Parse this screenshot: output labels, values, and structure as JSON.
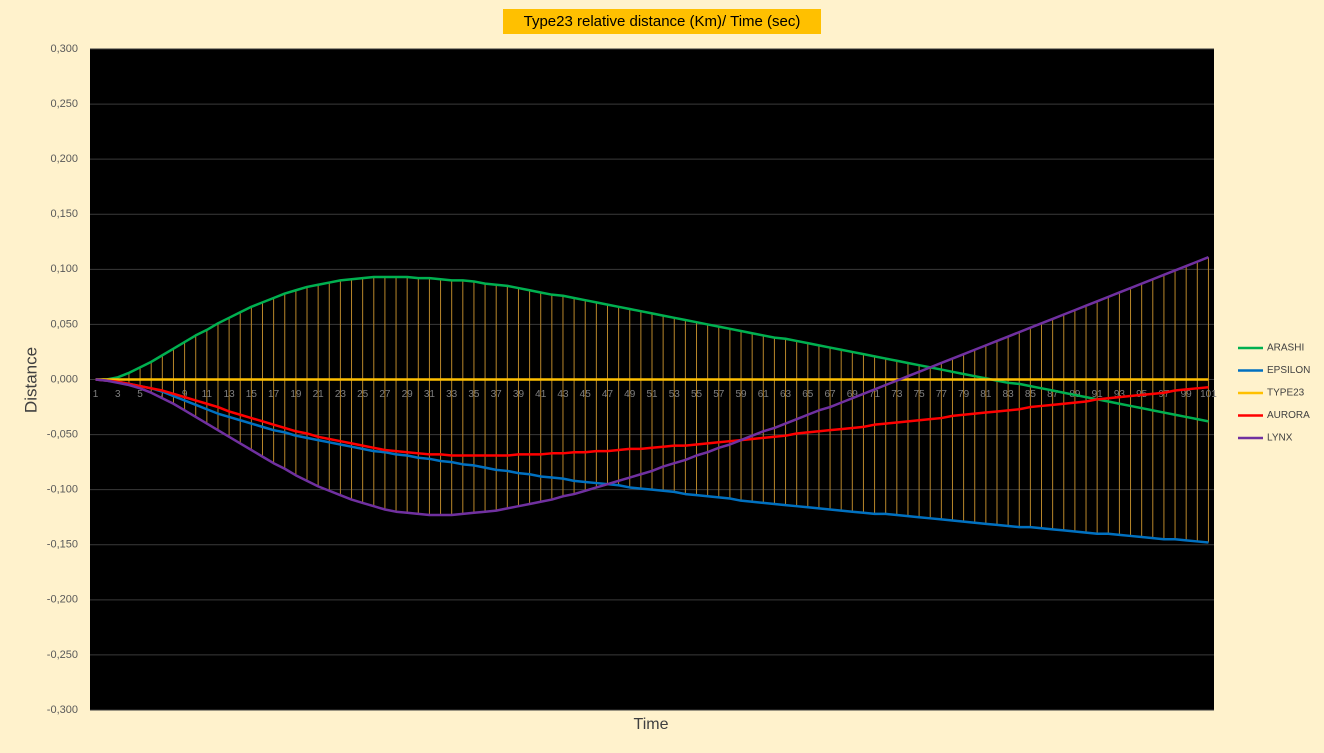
{
  "chart_data": {
    "type": "line",
    "title": "Type23 relative distance (Km)/ Time (sec)",
    "y_label": "Distance",
    "x_label": "Time",
    "categories": [
      1,
      null,
      3,
      null,
      5,
      null,
      7,
      null,
      9,
      null,
      11,
      null,
      13,
      null,
      15,
      null,
      17,
      null,
      19,
      null,
      21,
      null,
      23,
      null,
      25,
      null,
      27,
      null,
      29,
      null,
      31,
      null,
      33,
      null,
      35,
      null,
      37,
      null,
      39,
      null,
      41,
      null,
      43,
      null,
      45,
      null,
      47,
      null,
      49,
      null,
      51,
      null,
      53,
      null,
      55,
      null,
      57,
      null,
      59,
      null,
      61,
      null,
      63,
      null,
      65,
      null,
      67,
      null,
      69,
      null,
      71,
      null,
      73,
      null,
      75,
      null,
      77,
      null,
      79,
      null,
      81,
      null,
      83,
      null,
      85,
      null,
      87,
      null,
      89,
      null,
      91,
      null,
      93,
      null,
      95,
      null,
      97,
      null,
      99,
      null,
      101
    ],
    "series": [
      {
        "name": "ARASHI",
        "color": "#00b050",
        "values": [
          0,
          0,
          0.002,
          0.006,
          0.011,
          0.016,
          0.022,
          0.028,
          0.034,
          0.04,
          0.045,
          0.051,
          0.056,
          0.061,
          0.066,
          0.07,
          0.074,
          0.078,
          0.081,
          0.084,
          0.086,
          0.088,
          0.09,
          0.091,
          0.092,
          0.093,
          0.093,
          0.093,
          0.093,
          0.092,
          0.092,
          0.091,
          0.09,
          0.09,
          0.089,
          0.087,
          0.086,
          0.085,
          0.083,
          0.081,
          0.079,
          0.077,
          0.076,
          0.074,
          0.072,
          0.07,
          0.068,
          0.066,
          0.064,
          0.062,
          0.06,
          0.058,
          0.056,
          0.054,
          0.052,
          0.05,
          0.048,
          0.046,
          0.044,
          0.042,
          0.04,
          0.038,
          0.037,
          0.035,
          0.033,
          0.031,
          0.029,
          0.027,
          0.025,
          0.023,
          0.021,
          0.019,
          0.017,
          0.015,
          0.013,
          0.011,
          0.009,
          0.007,
          0.005,
          0.003,
          0.001,
          -0.001,
          -0.003,
          -0.004,
          -0.006,
          -0.008,
          -0.01,
          -0.012,
          -0.014,
          -0.016,
          -0.018,
          -0.02,
          -0.022,
          -0.024,
          -0.026,
          -0.028,
          -0.03,
          -0.032,
          -0.034,
          -0.036,
          -0.038
        ]
      },
      {
        "name": "EPSILON",
        "color": "#0070c0",
        "values": [
          0,
          -0.001,
          -0.002,
          -0.004,
          -0.006,
          -0.008,
          -0.011,
          -0.015,
          -0.019,
          -0.023,
          -0.027,
          -0.031,
          -0.034,
          -0.037,
          -0.04,
          -0.043,
          -0.046,
          -0.048,
          -0.051,
          -0.053,
          -0.055,
          -0.057,
          -0.059,
          -0.061,
          -0.063,
          -0.065,
          -0.066,
          -0.068,
          -0.069,
          -0.071,
          -0.072,
          -0.074,
          -0.075,
          -0.077,
          -0.078,
          -0.08,
          -0.082,
          -0.083,
          -0.085,
          -0.086,
          -0.088,
          -0.089,
          -0.09,
          -0.092,
          -0.093,
          -0.094,
          -0.095,
          -0.096,
          -0.098,
          -0.099,
          -0.1,
          -0.101,
          -0.102,
          -0.104,
          -0.105,
          -0.106,
          -0.107,
          -0.108,
          -0.11,
          -0.111,
          -0.112,
          -0.113,
          -0.114,
          -0.115,
          -0.116,
          -0.117,
          -0.118,
          -0.119,
          -0.12,
          -0.121,
          -0.122,
          -0.122,
          -0.123,
          -0.124,
          -0.125,
          -0.126,
          -0.127,
          -0.128,
          -0.129,
          -0.13,
          -0.131,
          -0.132,
          -0.133,
          -0.134,
          -0.134,
          -0.135,
          -0.136,
          -0.137,
          -0.138,
          -0.139,
          -0.14,
          -0.14,
          -0.141,
          -0.142,
          -0.143,
          -0.144,
          -0.145,
          -0.145,
          -0.146,
          -0.147,
          -0.148
        ]
      },
      {
        "name": "TYPE23",
        "color": "#ffc000",
        "values": [
          0,
          0,
          0,
          0,
          0,
          0,
          0,
          0,
          0,
          0,
          0,
          0,
          0,
          0,
          0,
          0,
          0,
          0,
          0,
          0,
          0,
          0,
          0,
          0,
          0,
          0,
          0,
          0,
          0,
          0,
          0,
          0,
          0,
          0,
          0,
          0,
          0,
          0,
          0,
          0,
          0,
          0,
          0,
          0,
          0,
          0,
          0,
          0,
          0,
          0,
          0,
          0,
          0,
          0,
          0,
          0,
          0,
          0,
          0,
          0,
          0,
          0,
          0,
          0,
          0,
          0,
          0,
          0,
          0,
          0,
          0,
          0,
          0,
          0,
          0,
          0,
          0,
          0,
          0,
          0,
          0,
          0,
          0,
          0,
          0,
          0,
          0,
          0,
          0,
          0,
          0,
          0,
          0,
          0,
          0,
          0,
          0,
          0,
          0,
          0,
          0
        ]
      },
      {
        "name": "AURORA",
        "color": "#ff0000",
        "values": [
          0,
          -0.001,
          -0.002,
          -0.004,
          -0.006,
          -0.008,
          -0.01,
          -0.013,
          -0.016,
          -0.019,
          -0.022,
          -0.025,
          -0.029,
          -0.032,
          -0.035,
          -0.038,
          -0.041,
          -0.044,
          -0.047,
          -0.049,
          -0.052,
          -0.054,
          -0.056,
          -0.058,
          -0.06,
          -0.062,
          -0.064,
          -0.065,
          -0.066,
          -0.067,
          -0.068,
          -0.068,
          -0.069,
          -0.069,
          -0.069,
          -0.069,
          -0.069,
          -0.069,
          -0.068,
          -0.068,
          -0.068,
          -0.067,
          -0.067,
          -0.066,
          -0.066,
          -0.065,
          -0.065,
          -0.064,
          -0.063,
          -0.063,
          -0.062,
          -0.061,
          -0.06,
          -0.06,
          -0.059,
          -0.058,
          -0.057,
          -0.056,
          -0.055,
          -0.054,
          -0.053,
          -0.052,
          -0.051,
          -0.049,
          -0.048,
          -0.047,
          -0.046,
          -0.045,
          -0.044,
          -0.043,
          -0.041,
          -0.04,
          -0.039,
          -0.038,
          -0.037,
          -0.036,
          -0.035,
          -0.033,
          -0.032,
          -0.031,
          -0.03,
          -0.029,
          -0.028,
          -0.027,
          -0.025,
          -0.024,
          -0.023,
          -0.022,
          -0.021,
          -0.02,
          -0.018,
          -0.017,
          -0.016,
          -0.015,
          -0.014,
          -0.013,
          -0.012,
          -0.01,
          -0.009,
          -0.008,
          -0.007
        ]
      },
      {
        "name": "LYNX",
        "color": "#7030a0",
        "values": [
          0,
          -0.001,
          -0.003,
          -0.005,
          -0.008,
          -0.012,
          -0.017,
          -0.022,
          -0.028,
          -0.034,
          -0.04,
          -0.046,
          -0.052,
          -0.058,
          -0.064,
          -0.07,
          -0.076,
          -0.081,
          -0.087,
          -0.092,
          -0.097,
          -0.101,
          -0.105,
          -0.109,
          -0.112,
          -0.115,
          -0.118,
          -0.12,
          -0.121,
          -0.122,
          -0.123,
          -0.123,
          -0.123,
          -0.122,
          -0.121,
          -0.12,
          -0.119,
          -0.117,
          -0.115,
          -0.113,
          -0.111,
          -0.109,
          -0.106,
          -0.104,
          -0.101,
          -0.098,
          -0.095,
          -0.092,
          -0.089,
          -0.086,
          -0.083,
          -0.079,
          -0.076,
          -0.073,
          -0.069,
          -0.066,
          -0.062,
          -0.059,
          -0.055,
          -0.051,
          -0.047,
          -0.044,
          -0.04,
          -0.036,
          -0.032,
          -0.028,
          -0.025,
          -0.021,
          -0.017,
          -0.013,
          -0.009,
          -0.005,
          -0.001,
          0.003,
          0.007,
          0.011,
          0.015,
          0.019,
          0.023,
          0.027,
          0.031,
          0.035,
          0.039,
          0.043,
          0.047,
          0.051,
          0.055,
          0.059,
          0.063,
          0.067,
          0.071,
          0.075,
          0.079,
          0.083,
          0.087,
          0.091,
          0.095,
          0.099,
          0.103,
          0.107,
          0.111
        ]
      }
    ],
    "ylim": [
      -0.3,
      0.3
    ],
    "yticks": [
      {
        "value": 0.3,
        "label": "0,300"
      },
      {
        "value": 0.25,
        "label": "0,250"
      },
      {
        "value": 0.2,
        "label": "0,200"
      },
      {
        "value": 0.15,
        "label": "0,150"
      },
      {
        "value": 0.1,
        "label": "0,100"
      },
      {
        "value": 0.05,
        "label": "0,050"
      },
      {
        "value": 0,
        "label": "0,000"
      },
      {
        "value": -0.05,
        "label": "-0,050"
      },
      {
        "value": -0.1,
        "label": "-0,100"
      },
      {
        "value": -0.15,
        "label": "-0,150"
      },
      {
        "value": -0.2,
        "label": "-0,200"
      },
      {
        "value": -0.25,
        "label": "-0,250"
      },
      {
        "value": -0.3,
        "label": "-0,300"
      }
    ],
    "grid": true,
    "drop_lines": true,
    "legend": "right"
  }
}
